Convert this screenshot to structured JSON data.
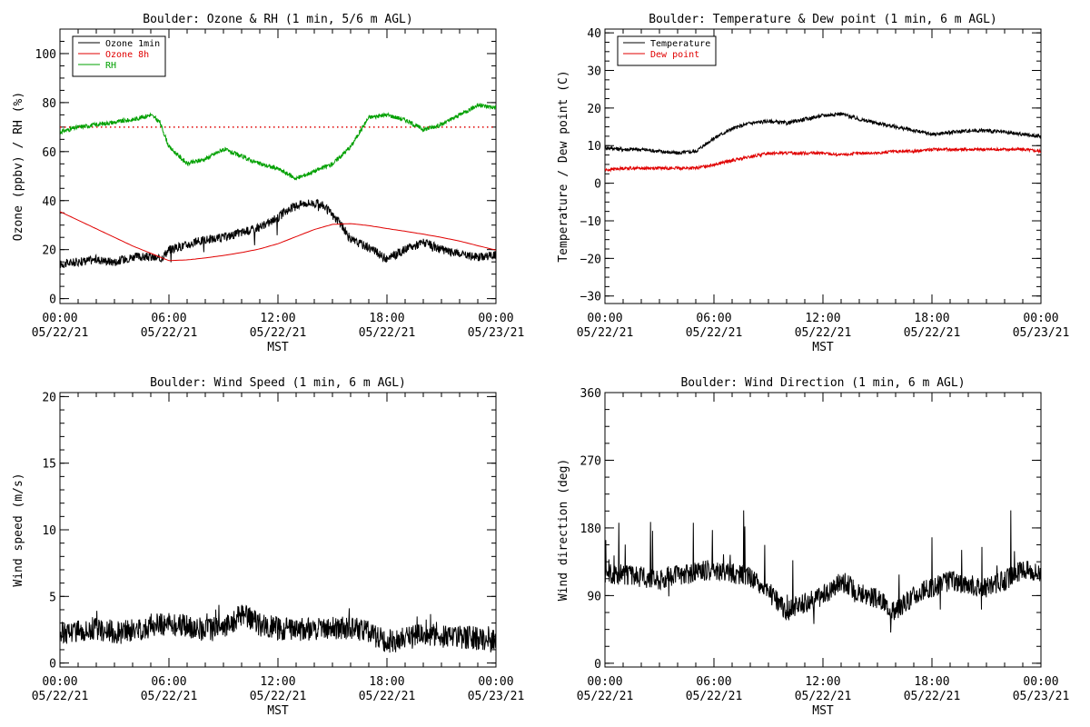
{
  "chart_data": [
    {
      "type": "line",
      "title": "Boulder: Ozone & RH (1 min, 5/6 m AGL)",
      "xlabel": "MST",
      "ylabel": "Ozone (ppbv) / RH (%)",
      "xlim": [
        "2021-05-22 00:00",
        "2021-05-23 00:00"
      ],
      "ylim": [
        -2,
        110
      ],
      "yticks": [
        "0",
        "20",
        "40",
        "60",
        "80",
        "100"
      ],
      "xticks": [
        {
          "time": "00:00",
          "date": "05/22/21"
        },
        {
          "time": "06:00",
          "date": "05/22/21"
        },
        {
          "time": "12:00",
          "date": "05/22/21"
        },
        {
          "time": "18:00",
          "date": "05/22/21"
        },
        {
          "time": "00:00",
          "date": "05/23/21"
        }
      ],
      "legend_position": "top-left",
      "reference_line": {
        "y": 70,
        "style": "dotted",
        "color": "#e00000"
      },
      "series": [
        {
          "name": "Ozone 1min",
          "color": "#000000",
          "x": [
            0,
            1,
            2,
            3,
            4,
            5,
            5.5,
            6,
            7,
            8,
            9,
            10,
            11,
            12,
            12.5,
            13,
            13.5,
            14,
            14.5,
            15,
            15.5,
            16,
            17,
            18,
            19,
            20,
            21,
            22,
            23,
            24
          ],
          "y": [
            14,
            15,
            16,
            15,
            17,
            17,
            16,
            20,
            22,
            24,
            25,
            27,
            29,
            33,
            36,
            38,
            39,
            39,
            38,
            34,
            30,
            24,
            21,
            16,
            20,
            23,
            20,
            18,
            17,
            18
          ]
        },
        {
          "name": "Ozone 8h",
          "color": "#e00000",
          "x": [
            0,
            1,
            2,
            3,
            4,
            5,
            6,
            7,
            8,
            9,
            10,
            11,
            12,
            13,
            14,
            15,
            16,
            17,
            18,
            19,
            20,
            21,
            22,
            23,
            24
          ],
          "y": [
            35.5,
            32,
            28.5,
            25,
            21.5,
            18.5,
            15.5,
            15.8,
            16.6,
            17.6,
            18.8,
            20.3,
            22.4,
            25.3,
            28.2,
            30.3,
            30.6,
            29.8,
            28.6,
            27.5,
            26.3,
            25,
            23.5,
            21.6,
            19.8
          ]
        },
        {
          "name": "RH",
          "color": "#00a000",
          "x": [
            0,
            1,
            2,
            3,
            4,
            5,
            5.5,
            6,
            7,
            8,
            9,
            10,
            11,
            12,
            13,
            14,
            15,
            16,
            17,
            18,
            19,
            20,
            21,
            22,
            23,
            24
          ],
          "y": [
            68,
            70,
            71,
            72,
            73,
            75,
            72,
            62,
            55,
            57,
            61,
            58,
            55,
            53,
            49,
            52,
            55,
            62,
            74,
            75,
            73,
            69,
            71,
            75,
            79,
            78
          ]
        }
      ]
    },
    {
      "type": "line",
      "title": "Boulder: Temperature & Dew point (1 min, 6 m AGL)",
      "xlabel": "MST",
      "ylabel": "Temperature / Dew point (C)",
      "xlim": [
        "2021-05-22 00:00",
        "2021-05-23 00:00"
      ],
      "ylim": [
        -32,
        41
      ],
      "yticks": [
        "40",
        "30",
        "20",
        "10",
        "0",
        "−10",
        "−20",
        "−30"
      ],
      "xticks": [
        {
          "time": "00:00",
          "date": "05/22/21"
        },
        {
          "time": "06:00",
          "date": "05/22/21"
        },
        {
          "time": "12:00",
          "date": "05/22/21"
        },
        {
          "time": "18:00",
          "date": "05/22/21"
        },
        {
          "time": "00:00",
          "date": "05/23/21"
        }
      ],
      "legend_position": "top-left",
      "series": [
        {
          "name": "Temperature",
          "color": "#000000",
          "x": [
            0,
            1,
            2,
            3,
            4,
            5,
            6,
            7,
            8,
            9,
            10,
            11,
            12,
            13,
            14,
            15,
            16,
            17,
            18,
            19,
            20,
            21,
            22,
            23,
            24
          ],
          "y": [
            9.5,
            9,
            9,
            8.5,
            8,
            8.5,
            12,
            14.5,
            16,
            16.5,
            16,
            17,
            18,
            18.5,
            17,
            16,
            15,
            14,
            13,
            13.5,
            14,
            14,
            13.5,
            13,
            12.5
          ]
        },
        {
          "name": "Dew point",
          "color": "#e00000",
          "x": [
            0,
            1,
            2,
            3,
            4,
            5,
            6,
            7,
            8,
            9,
            10,
            11,
            12,
            13,
            14,
            15,
            16,
            17,
            18,
            19,
            20,
            21,
            22,
            23,
            24
          ],
          "y": [
            3.5,
            4,
            4,
            4,
            4,
            4,
            5,
            6,
            7,
            8,
            8,
            8,
            8,
            7.5,
            8,
            8,
            8.5,
            8.5,
            9,
            9,
            9,
            9,
            9,
            9,
            8.5
          ]
        }
      ]
    },
    {
      "type": "line",
      "title": "Boulder: Wind Speed (1 min, 6 m AGL)",
      "xlabel": "MST",
      "ylabel": "Wind speed (m/s)",
      "xlim": [
        "2021-05-22 00:00",
        "2021-05-23 00:00"
      ],
      "ylim": [
        -0.3,
        20.3
      ],
      "yticks": [
        "0",
        "5",
        "10",
        "15",
        "20"
      ],
      "xticks": [
        {
          "time": "00:00",
          "date": "05/22/21"
        },
        {
          "time": "06:00",
          "date": "05/22/21"
        },
        {
          "time": "12:00",
          "date": "05/22/21"
        },
        {
          "time": "18:00",
          "date": "05/22/21"
        },
        {
          "time": "00:00",
          "date": "05/23/21"
        }
      ],
      "series": [
        {
          "color": "#000000",
          "x": [
            0,
            1,
            2,
            3,
            4,
            5,
            6,
            7,
            8,
            9,
            10,
            11,
            12,
            13,
            14,
            15,
            16,
            17,
            18,
            19,
            20,
            21,
            22,
            23,
            24
          ],
          "y": [
            2.2,
            2.5,
            2.6,
            2.3,
            2.4,
            2.8,
            3,
            2.8,
            2.5,
            2.6,
            3.6,
            2.9,
            2.6,
            2.5,
            2.6,
            2.7,
            2.6,
            2.3,
            1.6,
            1.8,
            2.2,
            2.0,
            2.0,
            1.8,
            1.6
          ]
        }
      ]
    },
    {
      "type": "line",
      "title": "Boulder: Wind Direction (1 min, 6 m AGL)",
      "xlabel": "MST",
      "ylabel": "Wind direction (deg)",
      "xlim": [
        "2021-05-22 00:00",
        "2021-05-23 00:00"
      ],
      "ylim": [
        -5,
        360
      ],
      "yticks": [
        "0",
        "90",
        "180",
        "270",
        "360"
      ],
      "xticks": [
        {
          "time": "00:00",
          "date": "05/22/21"
        },
        {
          "time": "06:00",
          "date": "05/22/21"
        },
        {
          "time": "12:00",
          "date": "05/22/21"
        },
        {
          "time": "18:00",
          "date": "05/22/21"
        },
        {
          "time": "00:00",
          "date": "05/23/21"
        }
      ],
      "series": [
        {
          "color": "#000000",
          "x": [
            0,
            1,
            2,
            3,
            4,
            5,
            6,
            7,
            8,
            9,
            10,
            11,
            12,
            13,
            14,
            15,
            16,
            17,
            18,
            19,
            20,
            21,
            22,
            23,
            24
          ],
          "y": [
            120,
            118,
            115,
            112,
            118,
            120,
            125,
            120,
            115,
            95,
            70,
            80,
            90,
            110,
            95,
            85,
            70,
            90,
            100,
            110,
            105,
            100,
            110,
            125,
            120
          ]
        }
      ]
    }
  ]
}
